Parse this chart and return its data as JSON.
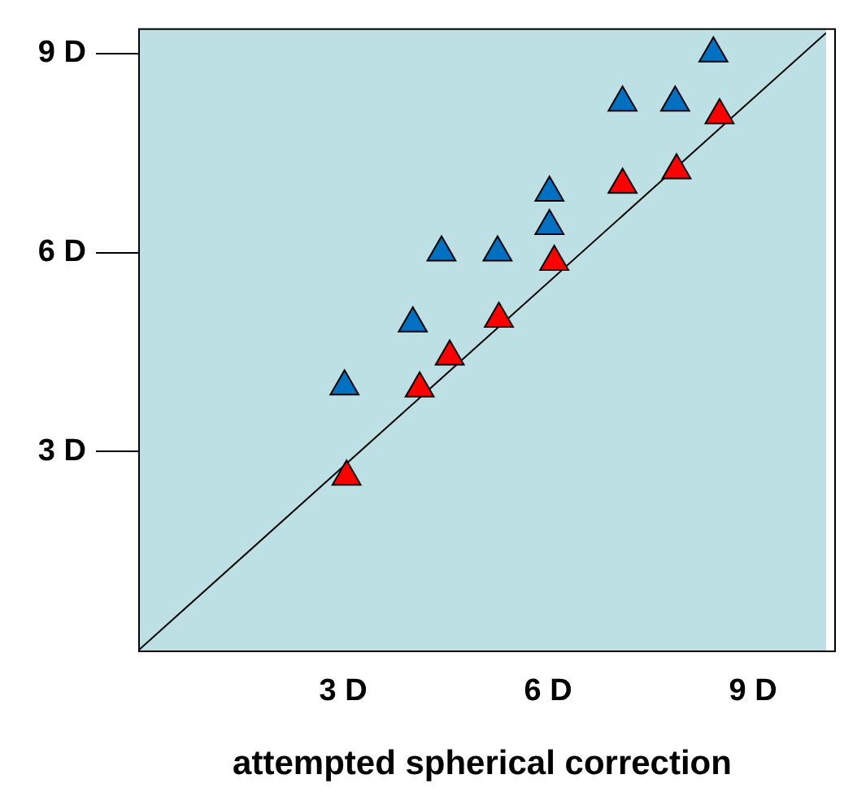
{
  "chart_data": {
    "type": "scatter",
    "xlabel": "attempted spherical correction",
    "xlim": [
      0,
      10.07
    ],
    "ylim": [
      0,
      9.38
    ],
    "xticks": [
      {
        "value": 3,
        "label": "3 D"
      },
      {
        "value": 6,
        "label": "6 D"
      },
      {
        "value": 9,
        "label": "9 D"
      }
    ],
    "yticks": [
      {
        "value": 3,
        "label": "3 D"
      },
      {
        "value": 6,
        "label": "6 D"
      },
      {
        "value": 9,
        "label": "9 D"
      }
    ],
    "grid": false,
    "legend": false,
    "marker": "triangle",
    "series": [
      {
        "color": "#0070c0",
        "x": [
          8.42,
          7.09,
          7.86,
          6.02,
          6.02,
          4.44,
          5.26,
          4.02,
          3.02
        ],
        "values": [
          9.0,
          8.26,
          8.26,
          6.9,
          6.4,
          6.0,
          6.0,
          4.93,
          3.98
        ]
      },
      {
        "color": "#ff0000",
        "x": [
          8.51,
          7.88,
          7.09,
          6.09,
          5.28,
          4.56,
          4.12,
          3.05
        ],
        "values": [
          8.07,
          7.24,
          7.02,
          5.86,
          5.0,
          4.43,
          3.95,
          2.62
        ]
      },
      {
        "type": "line",
        "color": "#000000",
        "marker": "none",
        "x": [
          0,
          10.07
        ],
        "values": [
          0,
          9.31
        ]
      }
    ]
  }
}
